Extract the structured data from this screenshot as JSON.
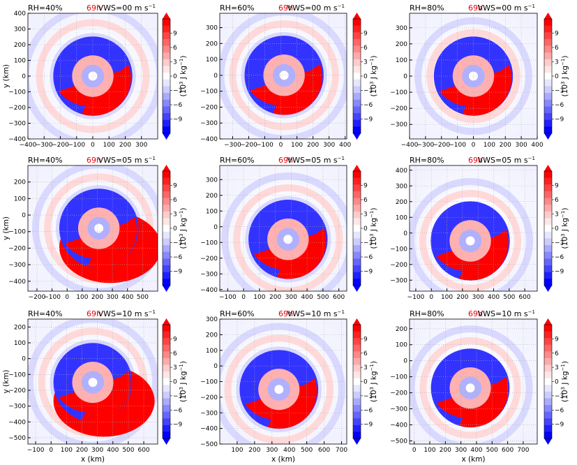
{
  "figure": {
    "time_label": "69h",
    "time_color": "#e8000b"
  },
  "colorbar": {
    "ticks": [
      "9",
      "6",
      "3",
      "0",
      "−3",
      "−6",
      "−9"
    ],
    "tick_values": [
      9,
      6,
      3,
      0,
      -3,
      -6,
      -9
    ],
    "label_main": "(10",
    "label_exp": "3",
    "label_unit": " J kg",
    "label_exp2": "−1",
    "label_close": ")",
    "colors": [
      "#0000ff",
      "#2020ff",
      "#4444ff",
      "#6666ff",
      "#8888ff",
      "#aaaaff",
      "#ccccff",
      "#e6e6ff",
      "#ffffff",
      "#ffe6e6",
      "#ffcccc",
      "#ffaaaa",
      "#ff8888",
      "#ff6666",
      "#ff4444",
      "#ff2020",
      "#ff0000"
    ]
  },
  "axes": {
    "xlabel": "x (km)",
    "ylabel": "y (km)"
  },
  "chart_data": [
    {
      "type": "heatmap",
      "rh_label": "RH=40%",
      "vws_label": "VWS=00 m s",
      "vws_exp": "−1",
      "xticks": [
        "−400",
        "−300",
        "−200",
        "−100",
        "0",
        "100",
        "200",
        "300"
      ],
      "xtick_values": [
        -400,
        -300,
        -200,
        -100,
        0,
        100,
        200,
        300
      ],
      "xlim": [
        -400,
        400
      ],
      "yticks": [
        "400",
        "300",
        "200",
        "100",
        "0",
        "−100",
        "−200",
        "−300",
        "−400"
      ],
      "ytick_values": [
        400,
        300,
        200,
        100,
        0,
        -100,
        -200,
        -300,
        -400
      ],
      "ylim": [
        -400,
        400
      ],
      "center": [
        0,
        0
      ],
      "rings": [
        1,
        1.35,
        1.7
      ]
    },
    {
      "type": "heatmap",
      "rh_label": "RH=60%",
      "vws_label": "VWS=00 m s",
      "vws_exp": "−1",
      "xticks": [
        "−300",
        "−200",
        "−100",
        "0",
        "100",
        "200",
        "300",
        "400"
      ],
      "xtick_values": [
        -300,
        -200,
        -100,
        0,
        100,
        200,
        300,
        400
      ],
      "xlim": [
        -380,
        410
      ],
      "yticks": [
        "300",
        "200",
        "100",
        "0",
        "−100",
        "−200",
        "−300",
        "−400"
      ],
      "ytick_values": [
        300,
        200,
        100,
        0,
        -100,
        -200,
        -300,
        -400
      ],
      "ylim": [
        -400,
        390
      ],
      "center": [
        20,
        0
      ],
      "rings": [
        1,
        1.3,
        1.6
      ]
    },
    {
      "type": "heatmap",
      "rh_label": "RH=80%",
      "vws_label": "VWS=00 m s",
      "vws_exp": "−1",
      "xticks": [
        "−400",
        "−300",
        "−200",
        "−100",
        "0",
        "100",
        "200",
        "300",
        "400"
      ],
      "xtick_values": [
        -400,
        -300,
        -200,
        -100,
        0,
        100,
        200,
        300,
        400
      ],
      "xlim": [
        -400,
        400
      ],
      "yticks": [
        "300",
        "200",
        "100",
        "0",
        "−100",
        "−200",
        "−300"
      ],
      "ytick_values": [
        300,
        200,
        100,
        0,
        -100,
        -200,
        -300
      ],
      "ylim": [
        -390,
        390
      ],
      "center": [
        0,
        0
      ],
      "rings": [
        0.8,
        1.1,
        1.4
      ]
    },
    {
      "type": "heatmap",
      "rh_label": "RH=40%",
      "vws_label": "VWS=05 m s",
      "vws_exp": "−1",
      "xticks": [
        "−200",
        "−100",
        "0",
        "100",
        "200",
        "300",
        "400",
        "500"
      ],
      "xtick_values": [
        -200,
        -100,
        0,
        100,
        200,
        300,
        400,
        500
      ],
      "xlim": [
        -260,
        600
      ],
      "yticks": [
        "200",
        "100",
        "0",
        "−100",
        "−200",
        "−300",
        "−400"
      ],
      "ytick_values": [
        200,
        100,
        0,
        -100,
        -200,
        -300,
        -400
      ],
      "ylim": [
        -460,
        300
      ],
      "center": [
        210,
        -80
      ],
      "rings": [
        1,
        1.3,
        1.6
      ]
    },
    {
      "type": "heatmap",
      "rh_label": "RH=60%",
      "vws_label": "VWS=05 m s",
      "vws_exp": "−1",
      "xticks": [
        "−100",
        "0",
        "100",
        "200",
        "300",
        "400",
        "500",
        "600"
      ],
      "xtick_values": [
        -100,
        0,
        100,
        200,
        300,
        400,
        500,
        600
      ],
      "xlim": [
        -150,
        650
      ],
      "yticks": [
        "300",
        "200",
        "100",
        "0",
        "−100",
        "−200",
        "−300",
        "−400"
      ],
      "ytick_values": [
        300,
        200,
        100,
        0,
        -100,
        -200,
        -300,
        -400
      ],
      "ylim": [
        -410,
        390
      ],
      "center": [
        280,
        -80
      ],
      "rings": [
        1,
        1.3,
        1.6
      ]
    },
    {
      "type": "heatmap",
      "rh_label": "RH=80%",
      "vws_label": "VWS=05 m s",
      "vws_exp": "−1",
      "xticks": [
        "−100",
        "0",
        "100",
        "200",
        "300",
        "400",
        "500",
        "600"
      ],
      "xtick_values": [
        -100,
        0,
        100,
        200,
        300,
        400,
        500,
        600
      ],
      "xlim": [
        -140,
        680
      ],
      "yticks": [
        "400",
        "300",
        "200",
        "100",
        "0",
        "−100",
        "−200",
        "−300"
      ],
      "ytick_values": [
        400,
        300,
        200,
        100,
        0,
        -100,
        -200,
        -300
      ],
      "ylim": [
        -370,
        430
      ],
      "center": [
        250,
        -50
      ],
      "rings": [
        0.9,
        1.2,
        1.5
      ]
    },
    {
      "type": "heatmap",
      "rh_label": "RH=40%",
      "vws_label": "VWS=10 m s",
      "vws_exp": "−1",
      "xticks": [
        "−100",
        "0",
        "100",
        "200",
        "300",
        "400",
        "500",
        "600"
      ],
      "xtick_values": [
        -100,
        0,
        100,
        200,
        300,
        400,
        500,
        600
      ],
      "xlim": [
        -150,
        690
      ],
      "yticks": [
        "200",
        "100",
        "0",
        "−100",
        "−200",
        "−300",
        "−400",
        "−500"
      ],
      "ytick_values": [
        200,
        100,
        0,
        -100,
        -200,
        -300,
        -400,
        -500
      ],
      "ylim": [
        -540,
        250
      ],
      "center": [
        270,
        -150
      ],
      "rings": [
        1,
        1.3,
        1.6
      ]
    },
    {
      "type": "heatmap",
      "rh_label": "RH=60%",
      "vws_label": "VWS=10 m s",
      "vws_exp": "−1",
      "xticks": [
        "100",
        "200",
        "300",
        "400",
        "500",
        "600",
        "700"
      ],
      "xtick_values": [
        100,
        200,
        300,
        400,
        500,
        600,
        700
      ],
      "xlim": [
        0,
        730
      ],
      "yticks": [
        "300",
        "200",
        "100",
        "0",
        "−100",
        "−200",
        "−300",
        "−400",
        "−500"
      ],
      "ytick_values": [
        300,
        200,
        100,
        0,
        -100,
        -200,
        -300,
        -400,
        -500
      ],
      "ylim": [
        -500,
        300
      ],
      "center": [
        340,
        -150
      ],
      "rings": [
        1,
        1.3,
        1.6
      ]
    },
    {
      "type": "heatmap",
      "rh_label": "RH=80%",
      "vws_label": "VWS=10 m s",
      "vws_exp": "−1",
      "xticks": [
        "0",
        "100",
        "200",
        "300",
        "400",
        "500",
        "600",
        "700"
      ],
      "xtick_values": [
        0,
        100,
        200,
        300,
        400,
        500,
        600,
        700
      ],
      "xlim": [
        -30,
        790
      ],
      "yticks": [
        "200",
        "100",
        "0",
        "−100",
        "−200",
        "−300",
        "−400",
        "−500"
      ],
      "ytick_values": [
        200,
        100,
        0,
        -100,
        -200,
        -300,
        -400,
        -500
      ],
      "ylim": [
        -520,
        260
      ],
      "center": [
        360,
        -170
      ],
      "rings": [
        0.9,
        1.2,
        1.5
      ]
    }
  ]
}
